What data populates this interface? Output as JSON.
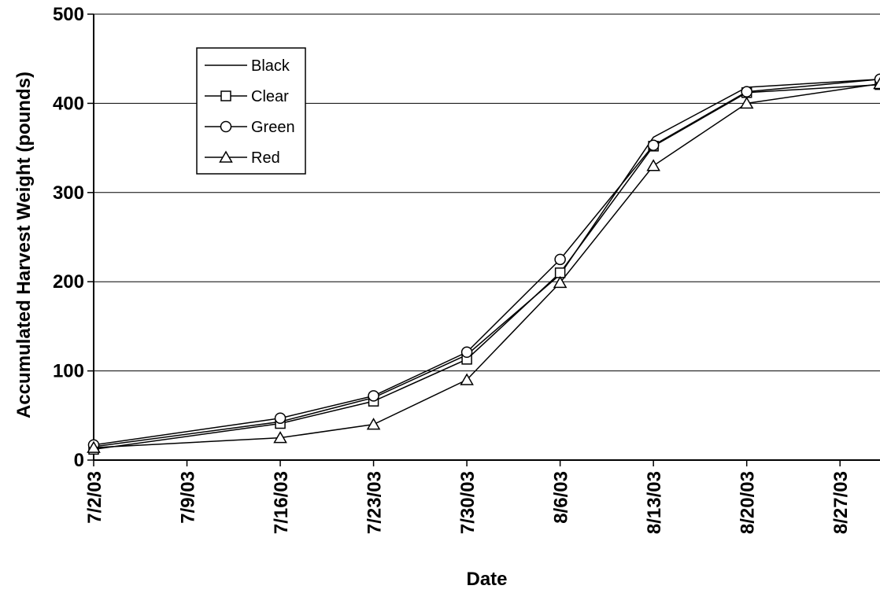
{
  "chart_data": {
    "type": "line",
    "title": "",
    "xlabel": "Date",
    "ylabel": "Accumulated Harvest Weight (pounds)",
    "ylim": [
      0,
      500
    ],
    "yticks": [
      0,
      100,
      200,
      300,
      400,
      500
    ],
    "xlim": [
      "7/2/03",
      "8/30/03"
    ],
    "xticks": [
      "7/2/03",
      "7/9/03",
      "7/16/03",
      "7/23/03",
      "7/30/03",
      "8/6/03",
      "8/13/03",
      "8/20/03",
      "8/27/03"
    ],
    "grid": "horizontal",
    "legend_position": "top-left",
    "x": [
      "7/2/03",
      "7/16/03",
      "7/23/03",
      "7/30/03",
      "8/6/03",
      "8/13/03",
      "8/20/03",
      "8/30/03"
    ],
    "series": [
      {
        "name": "Black",
        "marker": "none",
        "values": [
          15,
          43,
          70,
          118,
          208,
          362,
          418,
          427
        ]
      },
      {
        "name": "Clear",
        "marker": "square",
        "values": [
          12,
          41,
          66,
          113,
          210,
          352,
          412,
          421
        ]
      },
      {
        "name": "Green",
        "marker": "circle",
        "values": [
          17,
          47,
          72,
          121,
          225,
          353,
          413,
          427
        ]
      },
      {
        "name": "Red",
        "marker": "triangle",
        "values": [
          14,
          25,
          40,
          90,
          199,
          330,
          400,
          422
        ]
      }
    ]
  }
}
